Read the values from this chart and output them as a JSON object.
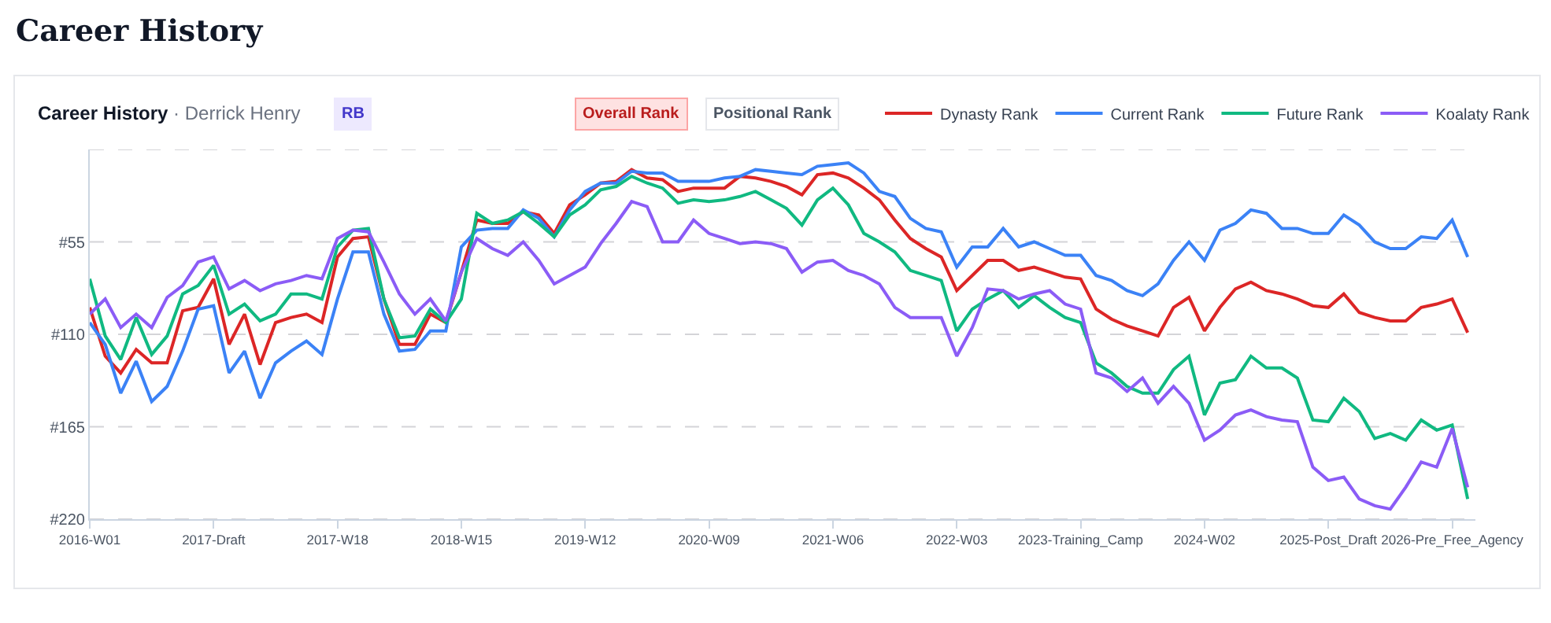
{
  "chart_data": {
    "type": "line",
    "title": "Career History",
    "subtitle": "Career History · Derrick Henry",
    "annotations": [
      "RB",
      "Overall Rank",
      "Positional Rank"
    ],
    "categories": [
      "2016-W01",
      null,
      null,
      null,
      null,
      null,
      null,
      null,
      "2017-Draft",
      null,
      null,
      null,
      null,
      null,
      null,
      null,
      "2017-W18",
      null,
      null,
      null,
      null,
      null,
      null,
      null,
      "2018-W15",
      null,
      null,
      null,
      null,
      null,
      null,
      null,
      "2019-W12",
      null,
      null,
      null,
      null,
      null,
      null,
      null,
      "2020-W09",
      null,
      null,
      null,
      null,
      null,
      null,
      null,
      "2021-W06",
      null,
      null,
      null,
      null,
      null,
      null,
      null,
      "2022-W03",
      null,
      null,
      null,
      null,
      null,
      null,
      null,
      "2023-Training_Camp",
      null,
      null,
      null,
      null,
      null,
      null,
      null,
      "2024-W02",
      null,
      null,
      null,
      null,
      null,
      null,
      null,
      "2025-Post_Draft",
      null,
      null,
      null,
      null,
      null,
      null,
      null,
      "2026-Pre_Free_Agency",
      null
    ],
    "series": [
      {
        "name": "Dynasty Rank",
        "color": "#dc2626",
        "values": [
          94,
          123,
          133,
          119,
          127,
          127,
          96,
          94,
          77,
          116,
          98,
          128,
          103,
          100,
          98,
          103,
          64,
          53,
          52,
          89,
          116,
          116,
          98,
          103,
          73,
          42,
          44,
          44,
          37,
          39,
          50,
          33,
          27,
          20,
          19,
          12,
          17,
          18,
          25,
          23,
          23,
          23,
          16,
          17,
          19,
          22,
          27,
          15,
          14,
          17,
          23,
          30,
          42,
          53,
          59,
          64,
          84,
          75,
          66,
          66,
          72,
          70,
          73,
          76,
          77,
          95,
          101,
          105,
          108,
          111,
          94,
          88,
          108,
          94,
          83,
          79,
          84,
          86,
          89,
          93,
          94,
          86,
          97,
          100,
          102,
          102,
          94,
          92,
          89,
          109
        ]
      },
      {
        "name": "Current Rank",
        "color": "#3b82f6",
        "values": [
          103,
          116,
          145,
          126,
          150,
          141,
          120,
          95,
          93,
          133,
          120,
          148,
          127,
          120,
          114,
          122,
          89,
          61,
          61,
          98,
          120,
          119,
          108,
          108,
          58,
          48,
          47,
          47,
          36,
          41,
          52,
          36,
          25,
          20,
          20,
          13,
          14,
          14,
          19,
          19,
          19,
          17,
          16,
          12,
          13,
          14,
          15,
          10,
          9,
          8,
          14,
          25,
          28,
          41,
          47,
          49,
          70,
          58,
          58,
          47,
          58,
          55,
          59,
          63,
          63,
          75,
          78,
          84,
          87,
          80,
          66,
          55,
          66,
          48,
          44,
          36,
          38,
          47,
          47,
          50,
          50,
          39,
          45,
          55,
          59,
          59,
          52,
          53,
          42,
          64
        ]
      },
      {
        "name": "Future Rank",
        "color": "#10b981",
        "values": [
          77,
          111,
          125,
          100,
          122,
          111,
          86,
          81,
          69,
          98,
          92,
          102,
          98,
          86,
          86,
          89,
          58,
          48,
          47,
          89,
          112,
          111,
          95,
          103,
          89,
          38,
          44,
          42,
          37,
          44,
          52,
          39,
          33,
          24,
          22,
          16,
          20,
          23,
          32,
          30,
          31,
          30,
          28,
          25,
          30,
          35,
          45,
          30,
          23,
          33,
          50,
          55,
          61,
          72,
          75,
          78,
          108,
          95,
          89,
          84,
          94,
          87,
          94,
          100,
          103,
          127,
          133,
          141,
          145,
          145,
          131,
          123,
          158,
          139,
          137,
          123,
          130,
          130,
          136,
          161,
          162,
          148,
          156,
          172,
          169,
          173,
          161,
          167,
          164,
          208
        ]
      },
      {
        "name": "Koalaty Rank",
        "color": "#8b5cf6",
        "values": [
          98,
          89,
          106,
          98,
          106,
          88,
          81,
          67,
          64,
          83,
          78,
          84,
          80,
          78,
          75,
          77,
          53,
          48,
          49,
          67,
          86,
          98,
          89,
          102,
          73,
          53,
          59,
          63,
          55,
          66,
          80,
          75,
          70,
          56,
          44,
          31,
          34,
          55,
          55,
          42,
          50,
          53,
          56,
          55,
          56,
          59,
          73,
          67,
          66,
          72,
          75,
          80,
          94,
          100,
          100,
          100,
          123,
          106,
          83,
          84,
          89,
          86,
          84,
          92,
          95,
          133,
          136,
          144,
          136,
          151,
          141,
          151,
          173,
          167,
          158,
          155,
          159,
          161,
          162,
          189,
          197,
          195,
          208,
          212,
          214,
          201,
          186,
          189,
          166,
          201
        ]
      }
    ],
    "ylim": [
      220,
      0
    ],
    "yticks": [
      {
        "value": 0,
        "label": null
      },
      {
        "value": 55,
        "label": "#55"
      },
      {
        "value": 110,
        "label": "#110"
      },
      {
        "value": 165,
        "label": "#165"
      },
      {
        "value": 220,
        "label": "#220"
      }
    ],
    "grid": "y",
    "legend": "top right",
    "marker": "none",
    "line_style": "solid"
  }
}
